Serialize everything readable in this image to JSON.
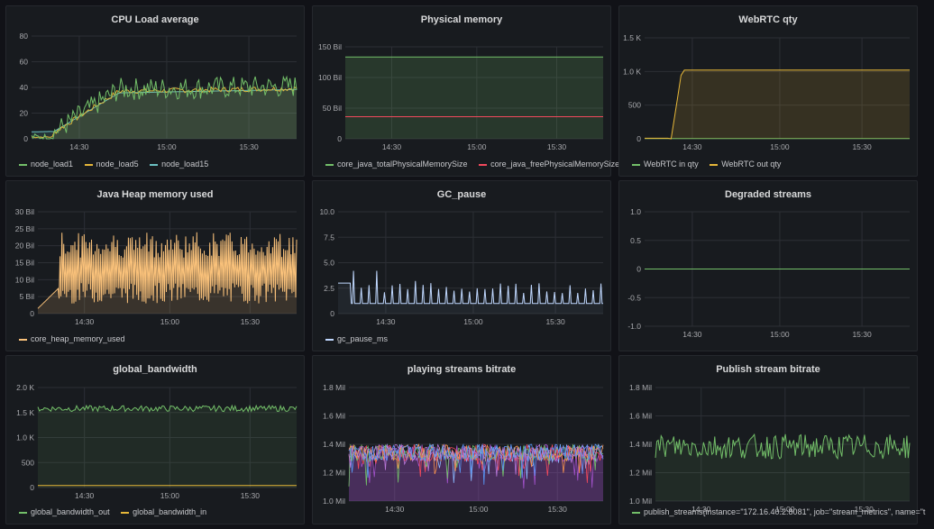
{
  "colors": {
    "background": "#111217",
    "panel": "#181b1f",
    "grid": "#2c2f35",
    "green": "#73bf69",
    "yellow": "#e6b739",
    "cyan": "#6cc2c3",
    "red": "#f2495c",
    "orange": "#f9c17a",
    "lightblue": "#c0d8ff",
    "purple": "#a352cc"
  },
  "panels": [
    {
      "title": "CPU Load average",
      "y_ticks": [
        "80",
        "60",
        "40",
        "20",
        "0"
      ],
      "x_ticks": [
        "14:30",
        "15:00",
        "15:30"
      ],
      "legend": [
        "node_load1",
        "node_load5",
        "node_load15"
      ]
    },
    {
      "title": "Physical memory",
      "y_ticks": [
        "150 Bil",
        "100 Bil",
        "50 Bil",
        "0"
      ],
      "x_ticks": [
        "14:30",
        "15:00",
        "15:30"
      ],
      "legend": [
        "core_java_totalPhysicalMemorySize",
        "core_java_freePhysicalMemorySize"
      ]
    },
    {
      "title": "WebRTC qty",
      "y_ticks": [
        "1.5 K",
        "1.0 K",
        "500",
        "0"
      ],
      "x_ticks": [
        "14:30",
        "15:00",
        "15:30"
      ],
      "legend": [
        "WebRTC in qty",
        "WebRTC out qty"
      ]
    },
    {
      "title": "Java Heap memory used",
      "y_ticks": [
        "30 Bil",
        "25 Bil",
        "20 Bil",
        "15 Bil",
        "10 Bil",
        "5 Bil",
        "0"
      ],
      "x_ticks": [
        "14:30",
        "15:00",
        "15:30"
      ],
      "legend": [
        "core_heap_memory_used"
      ]
    },
    {
      "title": "GC_pause",
      "y_ticks": [
        "10.0",
        "7.5",
        "5.0",
        "2.5",
        "0"
      ],
      "x_ticks": [
        "14:30",
        "15:00",
        "15:30"
      ],
      "legend": [
        "gc_pause_ms"
      ]
    },
    {
      "title": "Degraded streams",
      "y_ticks": [
        "1.0",
        "0.5",
        "0",
        "-0.5",
        "-1.0"
      ],
      "x_ticks": [
        "14:30",
        "15:00",
        "15:30"
      ],
      "legend": []
    },
    {
      "title": "global_bandwidth",
      "y_ticks": [
        "2.0 K",
        "1.5 K",
        "1.0 K",
        "500",
        "0"
      ],
      "x_ticks": [
        "14:30",
        "15:00",
        "15:30"
      ],
      "legend": [
        "global_bandwidth_out",
        "global_bandwidth_in"
      ]
    },
    {
      "title": "playing streams bitrate",
      "y_ticks": [
        "1.8 Mil",
        "1.6 Mil",
        "1.4 Mil",
        "1.2 Mil",
        "1.0 Mil"
      ],
      "x_ticks": [
        "14:30",
        "15:00",
        "15:30"
      ],
      "legend": []
    },
    {
      "title": "Publish stream bitrate",
      "y_ticks": [
        "1.8 Mil",
        "1.6 Mil",
        "1.4 Mil",
        "1.2 Mil",
        "1.0 Mil"
      ],
      "x_ticks": [
        "14:30",
        "15:00",
        "15:30"
      ],
      "legend": [
        "publish_streams{instance=\"172.16.40.2:8081\", job=\"stream_metrics\", name=\"t"
      ]
    }
  ]
}
